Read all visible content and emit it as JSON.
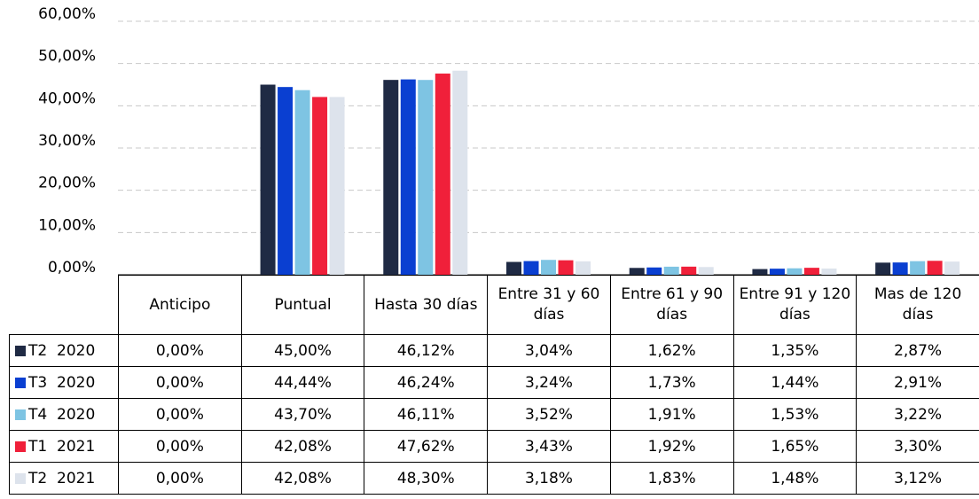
{
  "chart_data": {
    "type": "bar",
    "categories": [
      "Anticipo",
      "Puntual",
      "Hasta 30 días",
      "Entre 31 y 60 días",
      "Entre 61 y 90 días",
      "Entre 91 y 120 días",
      "Mas de 120 días"
    ],
    "series": [
      {
        "name": "T2  2020",
        "color": "#1f2a44",
        "values": [
          0,
          45.0,
          46.12,
          3.04,
          1.62,
          1.35,
          2.87
        ],
        "value_labels": [
          "0,00%",
          "45,00%",
          "46,12%",
          "3,04%",
          "1,62%",
          "1,35%",
          "2,87%"
        ]
      },
      {
        "name": "T3  2020",
        "color": "#0a3fd1",
        "values": [
          0,
          44.44,
          46.24,
          3.24,
          1.73,
          1.44,
          2.91
        ],
        "value_labels": [
          "0,00%",
          "44,44%",
          "46,24%",
          "3,24%",
          "1,73%",
          "1,44%",
          "2,91%"
        ]
      },
      {
        "name": "T4  2020",
        "color": "#7ec4e3",
        "values": [
          0,
          43.7,
          46.11,
          3.52,
          1.91,
          1.53,
          3.22
        ],
        "value_labels": [
          "0,00%",
          "43,70%",
          "46,11%",
          "3,52%",
          "1,91%",
          "1,53%",
          "3,22%"
        ]
      },
      {
        "name": "T1  2021",
        "color": "#f0203a",
        "values": [
          0,
          42.08,
          47.62,
          3.43,
          1.92,
          1.65,
          3.3
        ],
        "value_labels": [
          "0,00%",
          "42,08%",
          "47,62%",
          "3,43%",
          "1,92%",
          "1,65%",
          "3,30%"
        ]
      },
      {
        "name": "T2  2021",
        "color": "#dde3ec",
        "values": [
          0,
          42.08,
          48.3,
          3.18,
          1.83,
          1.48,
          3.12
        ],
        "value_labels": [
          "0,00%",
          "42,08%",
          "48,30%",
          "3,18%",
          "1,83%",
          "1,48%",
          "3,12%"
        ]
      }
    ],
    "ylim": [
      0,
      60
    ],
    "yticks": [
      {
        "value": 0,
        "label": "0,00%"
      },
      {
        "value": 10,
        "label": "10,00%"
      },
      {
        "value": 20,
        "label": "20,00%"
      },
      {
        "value": 30,
        "label": "30,00%"
      },
      {
        "value": 40,
        "label": "40,00%"
      },
      {
        "value": 50,
        "label": "50,00%"
      },
      {
        "value": 60,
        "label": "60,00%"
      }
    ],
    "grid": true
  }
}
